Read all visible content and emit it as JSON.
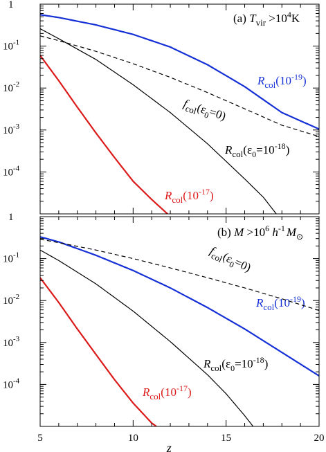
{
  "chart_data": [
    {
      "type": "line",
      "panel_label": "(a)",
      "condition_html": {
        "t1": "T",
        "t1_sub": "vir",
        "t2": " >10",
        "t2_sup": "4",
        "t3": "K"
      },
      "xlabel": "z",
      "xlim": [
        5,
        20
      ],
      "x_ticks": [
        "5",
        "10",
        "15",
        "20"
      ],
      "yscale": "log",
      "ylim": [
        1e-05,
        1
      ],
      "y_ticks": [
        {
          "mant": "1",
          "exp": ""
        },
        {
          "mant": "10",
          "exp": "-1"
        },
        {
          "mant": "10",
          "exp": "-2"
        },
        {
          "mant": "10",
          "exp": "-3"
        },
        {
          "mant": "10",
          "exp": "-4"
        }
      ],
      "series": [
        {
          "name": "R_col(10^-19)",
          "label_parts": {
            "main": "R",
            "sub": "col",
            "mid": "(10",
            "sup": "-19",
            "end": ")"
          },
          "color": "#1530d6",
          "style": "solid",
          "points": [
            [
              5,
              0.56
            ],
            [
              6,
              0.48
            ],
            [
              8,
              0.32
            ],
            [
              10,
              0.19
            ],
            [
              12,
              0.095
            ],
            [
              14,
              0.036
            ],
            [
              16,
              0.0108
            ],
            [
              18,
              0.0026
            ],
            [
              20,
              0.00105
            ]
          ]
        },
        {
          "name": "f_col(eps0=0)",
          "label_parts": {
            "main": "f",
            "sub": "col",
            "mid": "(ε",
            "sub2": "0",
            "end": "=0)"
          },
          "color": "#000000",
          "style": "dashed",
          "points": [
            [
              5,
              0.175
            ],
            [
              6,
              0.135
            ],
            [
              8,
              0.075
            ],
            [
              10,
              0.038
            ],
            [
              12,
              0.018
            ],
            [
              14,
              0.0078
            ],
            [
              16,
              0.0032
            ],
            [
              18,
              0.0013
            ],
            [
              20,
              0.0007
            ]
          ]
        },
        {
          "name": "R_col(eps0=10^-18)",
          "label_parts": {
            "main": "R",
            "sub": "col",
            "mid": "(ε",
            "sub2": "0",
            "mid2": "=10",
            "sup": "-18",
            "end": ")"
          },
          "color": "#000000",
          "style": "solid",
          "points": [
            [
              5,
              0.26
            ],
            [
              6,
              0.15
            ],
            [
              8,
              0.048
            ],
            [
              10,
              0.012
            ],
            [
              12,
              0.0026
            ],
            [
              14,
              0.00047
            ],
            [
              16,
              6.8e-05
            ],
            [
              17,
              2.5e-05
            ],
            [
              17.7,
              1e-05
            ]
          ]
        },
        {
          "name": "R_col(10^-17)",
          "label_parts": {
            "main": "R",
            "sub": "col",
            "mid": "(10",
            "sup": "-17",
            "end": ")"
          },
          "color": "#dd1a1a",
          "style": "solid",
          "points": [
            [
              5,
              0.06
            ],
            [
              6,
              0.015
            ],
            [
              7,
              0.0035
            ],
            [
              8,
              0.00085
            ],
            [
              9,
              0.00022
            ],
            [
              10,
              6e-05
            ],
            [
              11,
              2.2e-05
            ],
            [
              11.85,
              1e-05
            ]
          ]
        }
      ]
    },
    {
      "type": "line",
      "panel_label": "(b)",
      "condition_html": {
        "t1": "M",
        "t2": " >10",
        "t2_sup": "6",
        "t3": " h",
        "t3_sup": "-1",
        "t4": "M",
        "t4_sub": "⊙"
      },
      "xlabel": "z",
      "xlim": [
        5,
        20
      ],
      "x_ticks": [
        "5",
        "10",
        "15",
        "20"
      ],
      "yscale": "log",
      "ylim": [
        1e-05,
        1
      ],
      "y_ticks": [
        {
          "mant": "1",
          "exp": ""
        },
        {
          "mant": "10",
          "exp": "-1"
        },
        {
          "mant": "10",
          "exp": "-2"
        },
        {
          "mant": "10",
          "exp": "-3"
        },
        {
          "mant": "10",
          "exp": "-4"
        }
      ],
      "series": [
        {
          "name": "R_col(10^-19)",
          "label_parts": {
            "main": "R",
            "sub": "col",
            "mid": "(10",
            "sup": "-19",
            "end": ")"
          },
          "color": "#1530d6",
          "style": "solid",
          "points": [
            [
              5,
              0.33
            ],
            [
              6,
              0.25
            ],
            [
              8,
              0.12
            ],
            [
              10,
              0.052
            ],
            [
              12,
              0.02
            ],
            [
              14,
              0.0068
            ],
            [
              16,
              0.0021
            ],
            [
              18,
              0.00058
            ],
            [
              20,
              0.00016
            ]
          ]
        },
        {
          "name": "f_col(eps0=0)",
          "label_parts": {
            "main": "f",
            "sub": "col",
            "mid": "(ε",
            "sub2": "0",
            "end": "=0)"
          },
          "color": "#000000",
          "style": "dashed",
          "points": [
            [
              5,
              0.29
            ],
            [
              6,
              0.24
            ],
            [
              8,
              0.16
            ],
            [
              10,
              0.1
            ],
            [
              12,
              0.06
            ],
            [
              14,
              0.035
            ],
            [
              16,
              0.02
            ],
            [
              18,
              0.011
            ],
            [
              20,
              0.0058
            ]
          ]
        },
        {
          "name": "R_col(eps0=10^-18)",
          "label_parts": {
            "main": "R",
            "sub": "col",
            "mid": "(ε",
            "sub2": "0",
            "mid2": "=10",
            "sup": "-18",
            "end": ")"
          },
          "color": "#000000",
          "style": "solid",
          "points": [
            [
              5,
              0.16
            ],
            [
              6,
              0.09
            ],
            [
              8,
              0.025
            ],
            [
              10,
              0.0056
            ],
            [
              12,
              0.00105
            ],
            [
              14,
              0.00017
            ],
            [
              15,
              6e-05
            ],
            [
              16,
              1.8e-05
            ],
            [
              16.45,
              1e-05
            ]
          ]
        },
        {
          "name": "R_col(10^-17)",
          "label_parts": {
            "main": "R",
            "sub": "col",
            "mid": "(10",
            "sup": "-17",
            "end": ")"
          },
          "color": "#dd1a1a",
          "style": "solid",
          "points": [
            [
              5,
              0.035
            ],
            [
              6,
              0.009
            ],
            [
              7,
              0.0021
            ],
            [
              8,
              0.00052
            ],
            [
              9,
              0.00013
            ],
            [
              10,
              3.6e-05
            ],
            [
              11,
              1.2e-05
            ],
            [
              11.25,
              1e-05
            ]
          ]
        }
      ]
    }
  ]
}
